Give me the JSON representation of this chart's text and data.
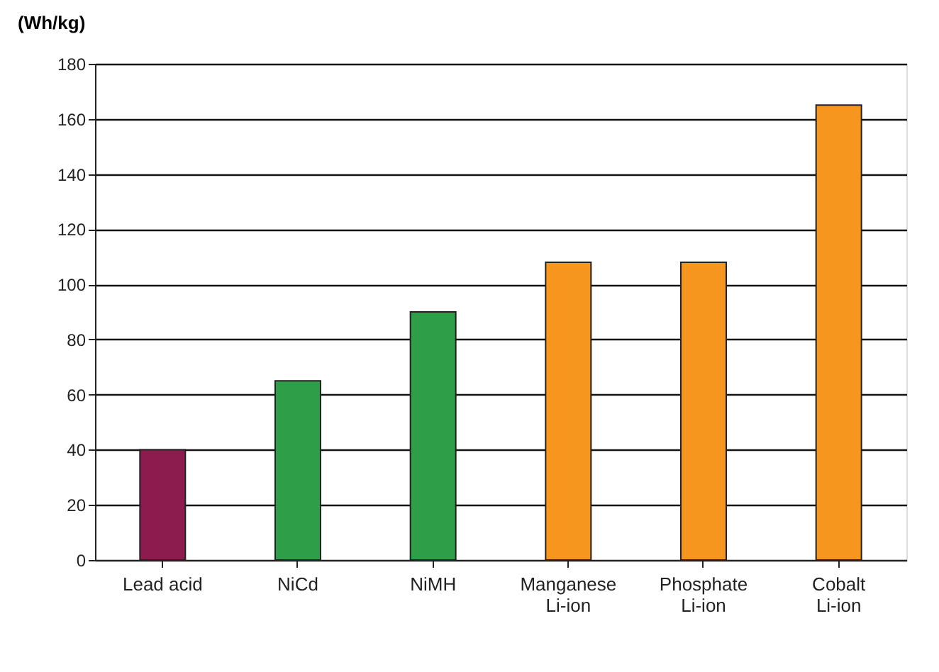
{
  "chart_data": {
    "type": "bar",
    "ylabel": "(Wh/kg)",
    "categories": [
      "Lead acid",
      "NiCd",
      "NiMH",
      "Manganese\nLi-ion",
      "Phosphate\nLi-ion",
      "Cobalt\nLi-ion"
    ],
    "values": [
      40,
      65,
      90,
      108,
      108,
      165
    ],
    "colors": [
      "#8c1c4e",
      "#2e9e48",
      "#2e9e48",
      "#f7961e",
      "#f7961e",
      "#f7961e"
    ],
    "ylim": [
      0,
      180
    ],
    "yticks": [
      0,
      20,
      40,
      60,
      80,
      100,
      120,
      140,
      160,
      180
    ],
    "grid": "y"
  }
}
